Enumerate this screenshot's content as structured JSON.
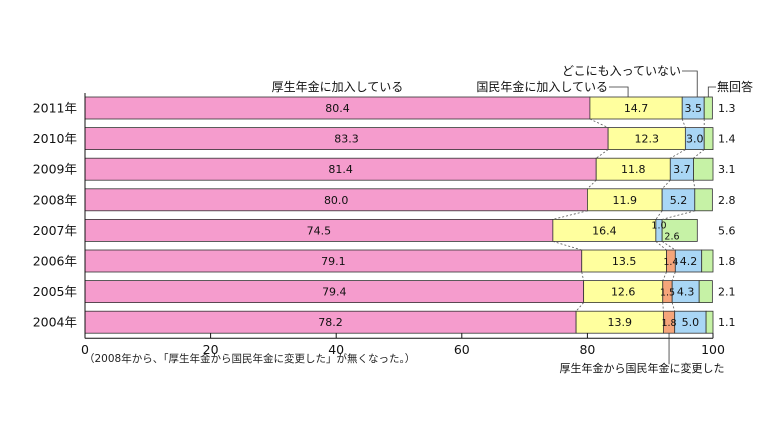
{
  "chart_data": {
    "type": "bar",
    "orientation": "horizontal",
    "stacked": true,
    "percent": true,
    "categories": [
      "2011年",
      "2010年",
      "2009年",
      "2008年",
      "2007年",
      "2006年",
      "2005年",
      "2004年"
    ],
    "series": [
      {
        "name": "厚生年金に加入している",
        "color": "#f59ccd",
        "values": [
          80.4,
          83.3,
          81.4,
          80.0,
          74.5,
          79.1,
          79.4,
          78.2
        ]
      },
      {
        "name": "国民年金に加入している",
        "color": "#ffff9e",
        "values": [
          14.7,
          12.3,
          11.8,
          11.9,
          16.4,
          13.5,
          12.6,
          13.9
        ]
      },
      {
        "name": "厚生年金から国民年金に変更した",
        "color": "#f5a57a",
        "values": [
          null,
          null,
          null,
          null,
          null,
          1.4,
          1.5,
          1.8
        ]
      },
      {
        "name": "どこにも入っていない",
        "color": "#a9d6f5",
        "values": [
          3.5,
          3.0,
          3.7,
          5.2,
          1.0,
          4.2,
          4.3,
          5.0
        ]
      },
      {
        "name": "無回答",
        "color": "#c6f2a6",
        "values": [
          1.3,
          1.4,
          3.1,
          2.8,
          5.6,
          1.8,
          2.1,
          1.1
        ]
      }
    ],
    "extra_labels": {
      "2007年": "2.6"
    },
    "xlim": [
      0,
      100
    ],
    "xticks": [
      0,
      20,
      40,
      60,
      80,
      100
    ],
    "grid": false,
    "legend": "labels-with-leader-lines"
  },
  "note": "（2008年から、「厚生年金から国民年金に変更した」が無くなった。）"
}
